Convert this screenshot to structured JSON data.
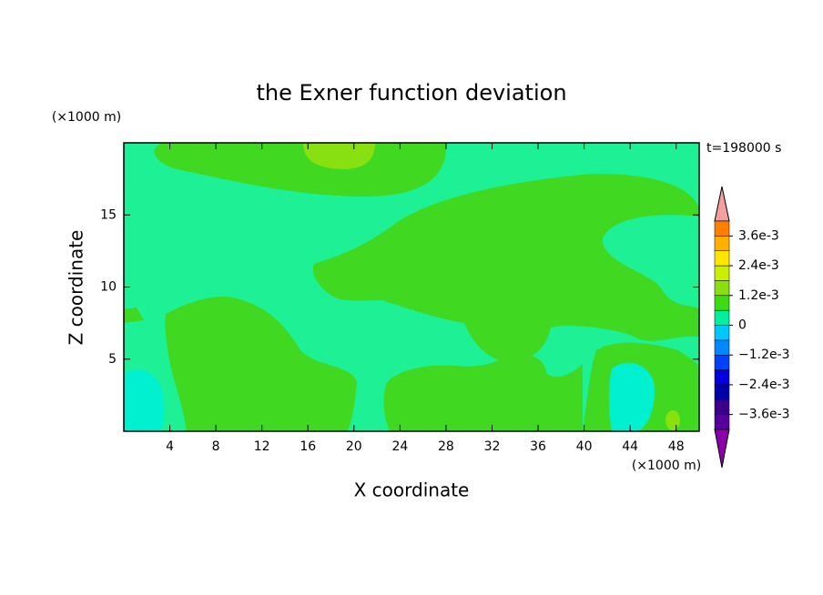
{
  "chart_data": {
    "type": "contour",
    "title": "the Exner function deviation",
    "x_label": "X coordinate",
    "y_label": "Z coordinate",
    "x_unit": "(×1000 m)",
    "y_unit": "(×1000 m)",
    "annotation": "t=198000 s",
    "xlim": [
      0,
      50
    ],
    "ylim": [
      0,
      20
    ],
    "xticks": [
      4,
      8,
      12,
      16,
      20,
      24,
      28,
      32,
      36,
      40,
      44,
      48
    ],
    "yticks": [
      5,
      10,
      15
    ],
    "colorbar": {
      "levels": [
        -0.0042,
        -0.0036,
        -0.003,
        -0.0024,
        -0.0018,
        -0.0012,
        -0.0006,
        0,
        0.0006,
        0.0012,
        0.0018,
        0.0024,
        0.003,
        0.0036,
        0.0042
      ],
      "colors": [
        "#8a00aa",
        "#55009a",
        "#3a0088",
        "#0000a8",
        "#0000e0",
        "#0040ff",
        "#0088ff",
        "#00c8ff",
        "#00f0a0",
        "#3cdc14",
        "#88e010",
        "#c8f000",
        "#ffe600",
        "#ffb000",
        "#ff8000",
        "#ff4000",
        "#ff0000",
        "#f4a0a0"
      ],
      "ticks": [
        {
          "value": 0.0036,
          "label": "3.6e-3"
        },
        {
          "value": 0.0024,
          "label": "2.4e-3"
        },
        {
          "value": 0.0012,
          "label": "1.2e-3"
        },
        0,
        {
          "value": -0.0012,
          "label": "−1.2e-3"
        },
        {
          "value": -0.0024,
          "label": "−2.4e-3"
        },
        {
          "value": -0.0036,
          "label": "−3.6e-3"
        }
      ]
    }
  }
}
